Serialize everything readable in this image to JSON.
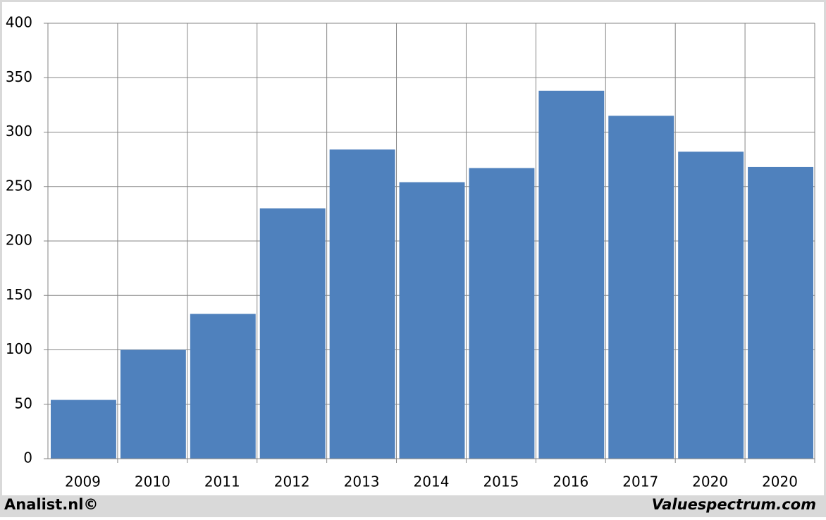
{
  "chart_data": {
    "type": "bar",
    "categories": [
      "2009",
      "2010",
      "2011",
      "2012",
      "2013",
      "2014",
      "2015",
      "2016",
      "2017",
      "2020",
      "2020"
    ],
    "values": [
      54,
      100,
      133,
      230,
      284,
      254,
      267,
      338,
      315,
      282,
      268
    ],
    "color": "#4f81bd",
    "ylim": [
      0,
      400
    ],
    "yticks": [
      0,
      50,
      100,
      150,
      200,
      250,
      300,
      350,
      400
    ],
    "grid": true,
    "footer_left": "Analist.nl©",
    "footer_right": "Valuespectrum.com"
  }
}
